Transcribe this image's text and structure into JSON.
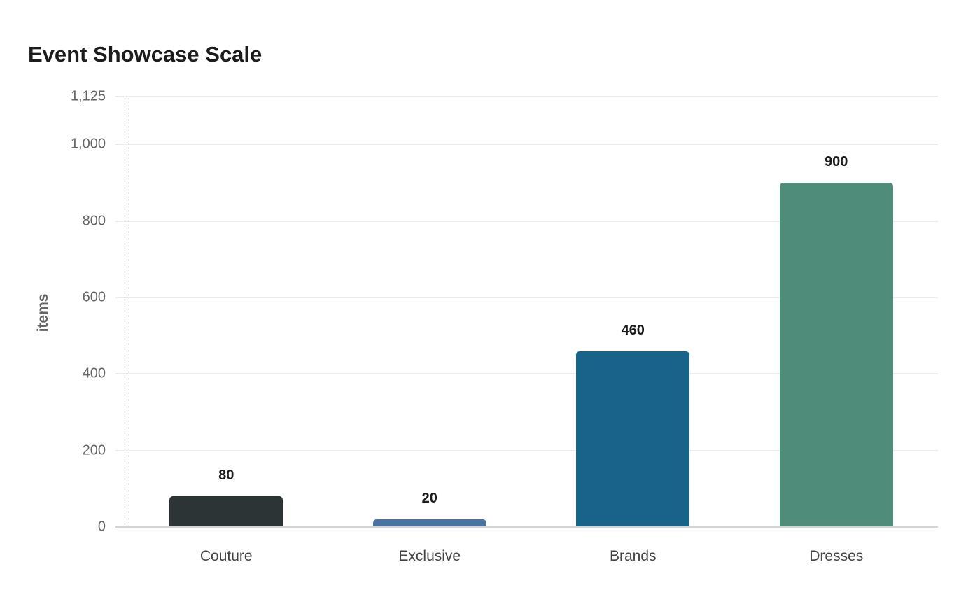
{
  "chart_data": {
    "type": "bar",
    "title": "Event Showcase Scale",
    "xlabel": "",
    "ylabel": "items",
    "categories": [
      "Couture",
      "Exclusive",
      "Brands",
      "Dresses"
    ],
    "values": [
      80,
      20,
      460,
      900
    ],
    "colors": [
      "#2d3436",
      "#4a73a2",
      "#196289",
      "#4f8c7a"
    ],
    "ylim": [
      0,
      1125
    ],
    "yticks": [
      0,
      200,
      400,
      600,
      800,
      1000,
      1125
    ],
    "ytick_labels": [
      "0",
      "200",
      "400",
      "600",
      "800",
      "1,000",
      "1,125"
    ],
    "grid": true,
    "legend": null,
    "data_labels": [
      "80",
      "20",
      "460",
      "900"
    ]
  }
}
